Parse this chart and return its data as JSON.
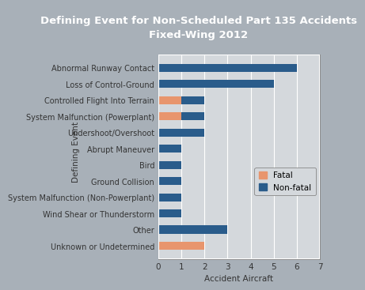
{
  "title": "Defining Event for Non-Scheduled Part 135 Accidents\nFixed-Wing 2012",
  "categories": [
    "Abnormal Runway Contact",
    "Loss of Control-Ground",
    "Controlled Flight Into Terrain",
    "System Malfunction (Powerplant)",
    "Undershoot/Overshoot",
    "Abrupt Maneuver",
    "Bird",
    "Ground Collision",
    "System Malfunction (Non-Powerplant)",
    "Wind Shear or Thunderstorm",
    "Other",
    "Unknown or Undetermined"
  ],
  "fatal": [
    0,
    0,
    1,
    1,
    0,
    0,
    0,
    0,
    0,
    0,
    0,
    2
  ],
  "nonfatal": [
    6,
    5,
    1,
    1,
    2,
    1,
    1,
    1,
    1,
    1,
    3,
    0
  ],
  "fatal_color": "#E8956D",
  "nonfatal_color": "#2A5C8B",
  "xlabel": "Accident Aircraft",
  "ylabel": "Defining Event",
  "xlim": [
    0,
    7
  ],
  "xticks": [
    0,
    1,
    2,
    3,
    4,
    5,
    6,
    7
  ],
  "title_bg_color": "#6A6A6A",
  "plot_bg_color": "#D4D8DC",
  "outer_bg_color": "#A8B0B8",
  "title_fontsize": 9.5,
  "label_fontsize": 7.0,
  "axis_fontsize": 7.5,
  "bar_height": 0.5
}
